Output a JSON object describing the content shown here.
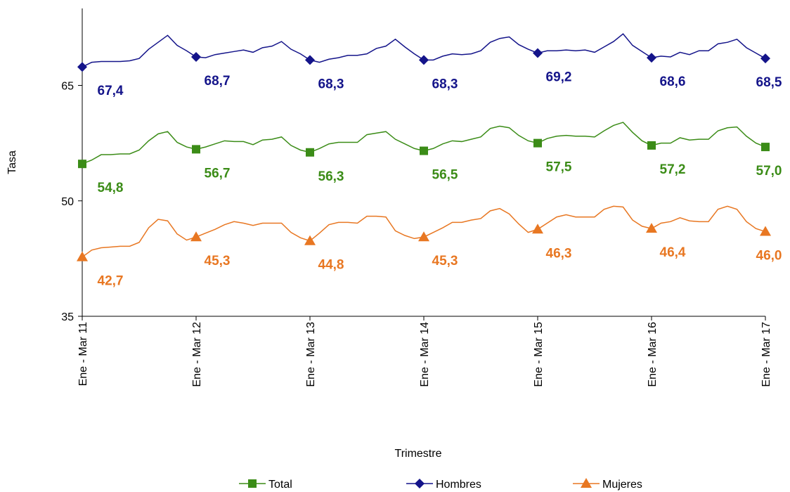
{
  "chart_data": {
    "type": "line",
    "x_label": "Trimestre",
    "y_label": "Tasa",
    "categories": [
      "Ene - Mar 11",
      null,
      null,
      null,
      null,
      null,
      null,
      null,
      null,
      null,
      null,
      null,
      "Ene - Mar 12",
      null,
      null,
      null,
      null,
      null,
      null,
      null,
      null,
      null,
      null,
      null,
      "Ene - Mar 13",
      null,
      null,
      null,
      null,
      null,
      null,
      null,
      null,
      null,
      null,
      null,
      "Ene - Mar 14",
      null,
      null,
      null,
      null,
      null,
      null,
      null,
      null,
      null,
      null,
      null,
      "Ene - Mar 15",
      null,
      null,
      null,
      null,
      null,
      null,
      null,
      null,
      null,
      null,
      null,
      "Ene - Mar 16",
      null,
      null,
      null,
      null,
      null,
      null,
      null,
      null,
      null,
      null,
      null,
      "Ene - Mar 17"
    ],
    "ylim": [
      35,
      75
    ],
    "yticks": [
      35,
      50,
      65
    ],
    "series": [
      {
        "name": "Total",
        "color": "#3b8c17",
        "marker": "square",
        "values": [
          54.8,
          55.3,
          56.0,
          56.0,
          56.1,
          56.1,
          56.6,
          57.8,
          58.7,
          59.0,
          57.6,
          57.0,
          56.7,
          57.0,
          57.4,
          57.8,
          57.7,
          57.7,
          57.3,
          57.9,
          58.0,
          58.3,
          57.2,
          56.6,
          56.3,
          56.8,
          57.4,
          57.6,
          57.6,
          57.6,
          58.6,
          58.8,
          59.0,
          58.0,
          57.4,
          56.8,
          56.5,
          56.8,
          57.4,
          57.8,
          57.7,
          58.0,
          58.3,
          59.4,
          59.7,
          59.5,
          58.5,
          57.8,
          57.5,
          58.1,
          58.4,
          58.5,
          58.4,
          58.4,
          58.3,
          59.1,
          59.8,
          60.2,
          58.9,
          57.8,
          57.2,
          57.5,
          57.5,
          58.2,
          57.9,
          58.0,
          58.0,
          59.1,
          59.5,
          59.6,
          58.4,
          57.5,
          57.0
        ],
        "value_labels": [
          "54,8",
          null,
          null,
          null,
          null,
          null,
          null,
          null,
          null,
          null,
          null,
          null,
          "56,7",
          null,
          null,
          null,
          null,
          null,
          null,
          null,
          null,
          null,
          null,
          null,
          "56,3",
          null,
          null,
          null,
          null,
          null,
          null,
          null,
          null,
          null,
          null,
          null,
          "56,5",
          null,
          null,
          null,
          null,
          null,
          null,
          null,
          null,
          null,
          null,
          null,
          "57,5",
          null,
          null,
          null,
          null,
          null,
          null,
          null,
          null,
          null,
          null,
          null,
          "57,2",
          null,
          null,
          null,
          null,
          null,
          null,
          null,
          null,
          null,
          null,
          null,
          "57,0"
        ]
      },
      {
        "name": "Hombres",
        "color": "#14148a",
        "marker": "diamond",
        "values": [
          67.4,
          68.0,
          68.1,
          68.1,
          68.1,
          68.2,
          68.5,
          69.7,
          70.6,
          71.5,
          70.2,
          69.5,
          68.7,
          68.6,
          69.0,
          69.2,
          69.4,
          69.6,
          69.3,
          69.9,
          70.1,
          70.7,
          69.7,
          69.1,
          68.3,
          68.0,
          68.4,
          68.6,
          68.9,
          68.9,
          69.1,
          69.8,
          70.1,
          71.0,
          70.0,
          69.1,
          68.3,
          68.3,
          68.8,
          69.1,
          69.0,
          69.1,
          69.5,
          70.6,
          71.1,
          71.3,
          70.3,
          69.7,
          69.2,
          69.5,
          69.5,
          69.6,
          69.5,
          69.6,
          69.3,
          70.0,
          70.7,
          71.7,
          70.2,
          69.4,
          68.6,
          68.8,
          68.7,
          69.3,
          69.0,
          69.5,
          69.5,
          70.4,
          70.6,
          71.0,
          69.9,
          69.2,
          68.5
        ],
        "value_labels": [
          "67,4",
          null,
          null,
          null,
          null,
          null,
          null,
          null,
          null,
          null,
          null,
          null,
          "68,7",
          null,
          null,
          null,
          null,
          null,
          null,
          null,
          null,
          null,
          null,
          null,
          "68,3",
          null,
          null,
          null,
          null,
          null,
          null,
          null,
          null,
          null,
          null,
          null,
          "68,3",
          null,
          null,
          null,
          null,
          null,
          null,
          null,
          null,
          null,
          null,
          null,
          "69,2",
          null,
          null,
          null,
          null,
          null,
          null,
          null,
          null,
          null,
          null,
          null,
          "68,6",
          null,
          null,
          null,
          null,
          null,
          null,
          null,
          null,
          null,
          null,
          null,
          "68,5"
        ]
      },
      {
        "name": "Mujeres",
        "color": "#e87722",
        "marker": "triangle",
        "values": [
          42.7,
          43.6,
          43.9,
          44.0,
          44.1,
          44.1,
          44.6,
          46.5,
          47.6,
          47.4,
          45.7,
          44.9,
          45.3,
          45.8,
          46.3,
          46.9,
          47.3,
          47.1,
          46.8,
          47.1,
          47.1,
          47.1,
          45.9,
          45.2,
          44.8,
          45.8,
          46.9,
          47.2,
          47.2,
          47.1,
          48.0,
          48.0,
          47.9,
          46.1,
          45.5,
          45.1,
          45.3,
          45.9,
          46.5,
          47.2,
          47.2,
          47.5,
          47.7,
          48.7,
          49.0,
          48.3,
          47.0,
          45.9,
          46.3,
          47.1,
          47.9,
          48.2,
          47.9,
          47.9,
          47.9,
          48.9,
          49.3,
          49.2,
          47.5,
          46.7,
          46.4,
          47.1,
          47.3,
          47.8,
          47.4,
          47.3,
          47.3,
          48.9,
          49.3,
          48.9,
          47.3,
          46.4,
          46.0
        ],
        "value_labels": [
          "42,7",
          null,
          null,
          null,
          null,
          null,
          null,
          null,
          null,
          null,
          null,
          null,
          "45,3",
          null,
          null,
          null,
          null,
          null,
          null,
          null,
          null,
          null,
          null,
          null,
          "44,8",
          null,
          null,
          null,
          null,
          null,
          null,
          null,
          null,
          null,
          null,
          null,
          "45,3",
          null,
          null,
          null,
          null,
          null,
          null,
          null,
          null,
          null,
          null,
          null,
          "46,3",
          null,
          null,
          null,
          null,
          null,
          null,
          null,
          null,
          null,
          null,
          null,
          "46,4",
          null,
          null,
          null,
          null,
          null,
          null,
          null,
          null,
          null,
          null,
          null,
          "46,0"
        ]
      }
    ]
  }
}
